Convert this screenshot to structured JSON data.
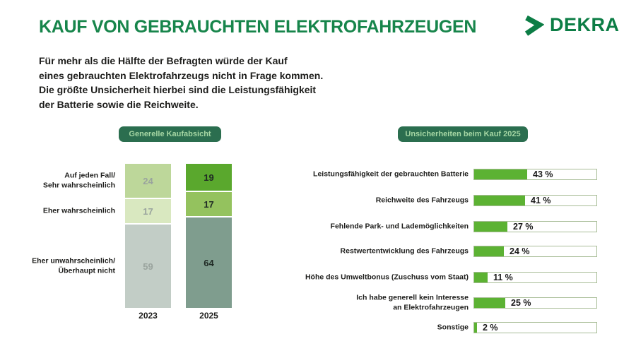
{
  "header": {
    "title": "KAUF VON GEBRAUCHTEN ELEKTROFAHRZEUGEN",
    "logo_text": "DEKRA"
  },
  "intro": {
    "text": "Für mehr als die Hälfte der Befragten würde der Kauf\neines gebrauchten Elektrofahrzeugs nicht in Frage kommen.\nDie größte Unsicherheit hierbei sind die Leistungsfähigkeit\nder Batterie sowie die Reichweite."
  },
  "colors": {
    "title_green": "#17854b",
    "brand_green": "#0c7d45",
    "badge_background": "#2b6e4f",
    "badge_text": "#a6d7a4",
    "bar_fill_green": "#5cb233",
    "track_border": "#a8bd97"
  },
  "left_chart": {
    "column_colors": [
      [
        "#bdd79a",
        "#d9e8c0",
        "#c2cdc6"
      ],
      [
        "#5aa82d",
        "#94c25e",
        "#7f9d8e"
      ]
    ],
    "value_text_colors": [
      "#9aa49e",
      "#1f2a24"
    ]
  },
  "right_chart": {
    "fill_color": "#5cb233",
    "unit_suffix": " %"
  },
  "chart_data": [
    {
      "type": "bar",
      "subtype": "stacked-column",
      "title": "Generelle Kaufabsicht",
      "categories": [
        "Auf jeden Fall/\nSehr wahrscheinlich",
        "Eher wahrscheinlich",
        "Eher unwahrscheinlich/\nÜberhaupt nicht"
      ],
      "series": [
        {
          "name": "2023",
          "values": [
            24,
            17,
            59
          ]
        },
        {
          "name": "2025",
          "values": [
            19,
            17,
            64
          ]
        }
      ],
      "unit": "percent",
      "ylim": [
        0,
        100
      ],
      "grid": false,
      "legend_position": "none"
    },
    {
      "type": "bar",
      "subtype": "horizontal",
      "title": "Unsicherheiten beim Kauf 2025",
      "categories": [
        "Leistungsfähigkeit der gebrauchten Batterie",
        "Reichweite des Fahrzeugs",
        "Fehlende Park- und Lademöglichkeiten",
        "Restwertentwicklung des Fahrzeugs",
        "Höhe des Umweltbonus (Zuschuss vom Staat)",
        "Ich habe generell kein Interesse\nan Elektrofahrzeugen",
        "Sonstige"
      ],
      "values": [
        43,
        41,
        27,
        24,
        11,
        25,
        2
      ],
      "value_labels": [
        "43 %",
        "41 %",
        "27 %",
        "24 %",
        "11 %",
        "25 %",
        "2 %"
      ],
      "unit": "percent",
      "xlim": [
        0,
        100
      ],
      "grid": false,
      "legend_position": "none"
    }
  ]
}
